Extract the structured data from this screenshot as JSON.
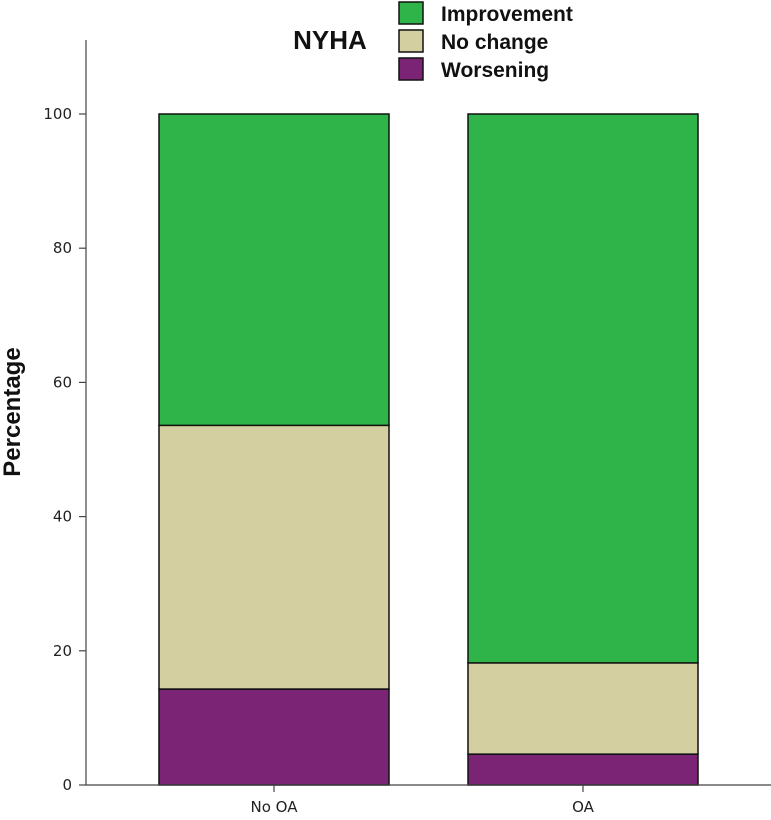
{
  "chart_data": {
    "type": "bar",
    "stacked": true,
    "title": "NYHA",
    "xlabel": "",
    "ylabel": "Percentage",
    "ylim": [
      0,
      100
    ],
    "yticks": [
      "0",
      "20",
      "40",
      "60",
      "80",
      "100"
    ],
    "categories": [
      "No OA",
      "OA"
    ],
    "series": [
      {
        "name": "Worsening",
        "color": "#7b2476",
        "values": [
          14.3,
          4.6
        ]
      },
      {
        "name": "No change",
        "color": "#d3cfa0",
        "values": [
          39.3,
          13.6
        ]
      },
      {
        "name": "Improvement",
        "color": "#2fb44a",
        "values": [
          46.4,
          81.8
        ]
      }
    ],
    "legend_order": [
      "Improvement",
      "No change",
      "Worsening"
    ],
    "legend_position": "top",
    "grid": false
  }
}
